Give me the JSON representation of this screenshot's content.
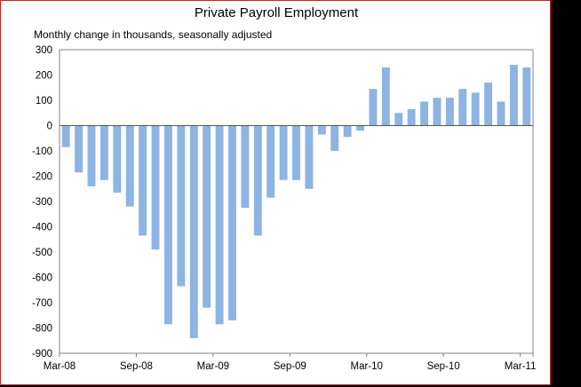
{
  "chart_data": {
    "type": "bar",
    "title": "Private Payroll Employment",
    "subtitle": "Monthly change in thousands, seasonally adjusted",
    "xlabel": "",
    "ylabel": "",
    "ylim": [
      -900,
      300
    ],
    "yticks": [
      300,
      200,
      100,
      0,
      -100,
      -200,
      -300,
      -400,
      -500,
      -600,
      -700,
      -800,
      -900
    ],
    "xtick_labels": [
      "Mar-08",
      "Sep-08",
      "Mar-09",
      "Sep-09",
      "Mar-10",
      "Sep-10",
      "Mar-11"
    ],
    "categories": [
      "Mar-08",
      "Apr-08",
      "May-08",
      "Jun-08",
      "Jul-08",
      "Aug-08",
      "Sep-08",
      "Oct-08",
      "Nov-08",
      "Dec-08",
      "Jan-09",
      "Feb-09",
      "Mar-09",
      "Apr-09",
      "May-09",
      "Jun-09",
      "Jul-09",
      "Aug-09",
      "Sep-09",
      "Oct-09",
      "Nov-09",
      "Dec-09",
      "Jan-10",
      "Feb-10",
      "Mar-10",
      "Apr-10",
      "May-10",
      "Jun-10",
      "Jul-10",
      "Aug-10",
      "Sep-10",
      "Oct-10",
      "Nov-10",
      "Dec-10",
      "Jan-11",
      "Feb-11",
      "Mar-11"
    ],
    "values": [
      -85,
      -185,
      -240,
      -215,
      -265,
      -320,
      -435,
      -490,
      -785,
      -635,
      -840,
      -720,
      -785,
      -770,
      -325,
      -435,
      -285,
      -215,
      -215,
      -250,
      -35,
      -100,
      -45,
      -20,
      145,
      230,
      50,
      65,
      95,
      110,
      110,
      145,
      130,
      170,
      95,
      240,
      230
    ],
    "bar_color": "#8db4e2",
    "grid": false
  }
}
